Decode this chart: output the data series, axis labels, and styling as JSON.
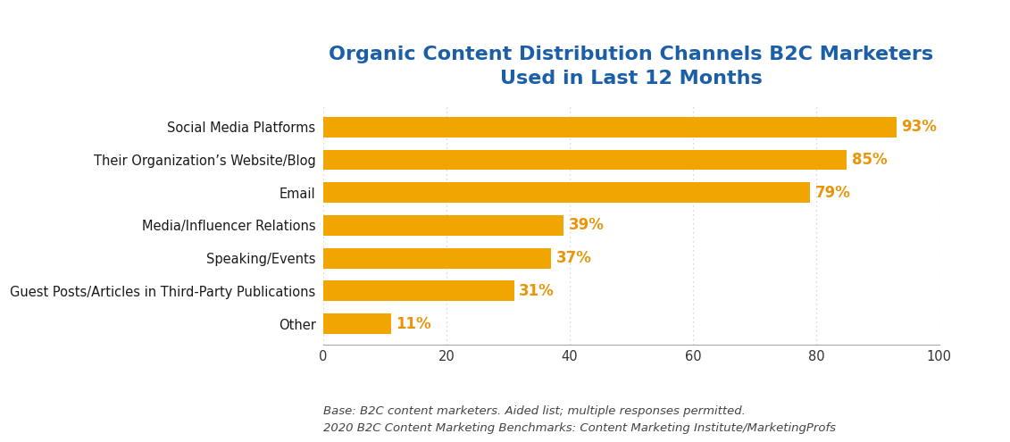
{
  "title_line1": "Organic Content Distribution Channels B2C Marketers",
  "title_line2": "Used in Last 12 Months",
  "title_color": "#1a5fa8",
  "categories": [
    "Other",
    "Guest Posts/Articles in Third-Party Publications",
    "Speaking/Events",
    "Media/Influencer Relations",
    "Email",
    "Their Organization’s Website/Blog",
    "Social Media Platforms"
  ],
  "values": [
    11,
    31,
    37,
    39,
    79,
    85,
    93
  ],
  "bar_color": "#f0a500",
  "label_color": "#e8950a",
  "label_fontsize": 12,
  "bar_height": 0.62,
  "xlim": [
    0,
    100
  ],
  "xticks": [
    0,
    20,
    40,
    60,
    80,
    100
  ],
  "ytick_fontsize": 10.5,
  "xtick_fontsize": 10.5,
  "footnote_line1": "Base: B2C content marketers. Aided list; multiple responses permitted.",
  "footnote_line2": "2020 B2C Content Marketing Benchmarks: Content Marketing Institute/MarketingProfs",
  "footnote_color": "#444444",
  "footnote_fontsize": 9.5,
  "background_color": "#ffffff",
  "grid_color": "#cccccc",
  "title_fontsize": 16,
  "ytick_color": "#1a1a1a"
}
